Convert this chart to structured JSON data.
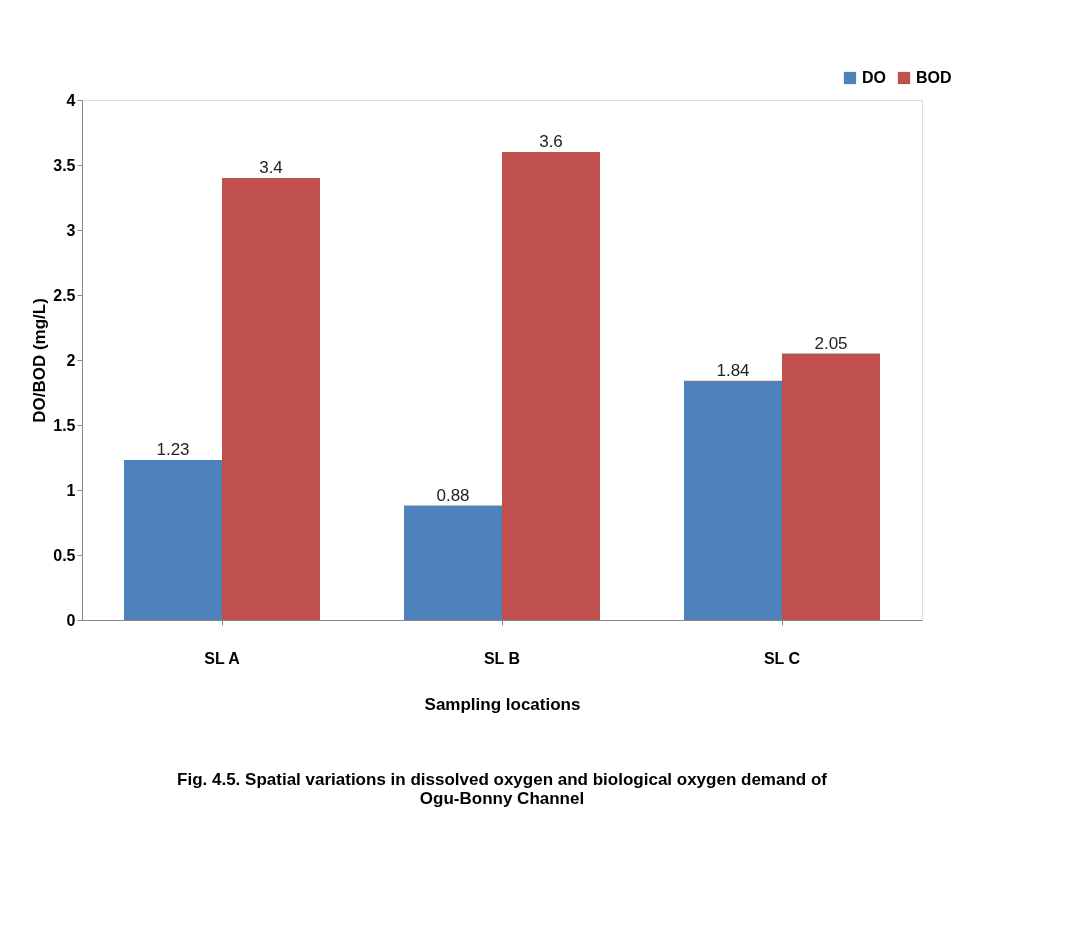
{
  "chart_data": {
    "type": "bar",
    "categories": [
      "SL A",
      "SL B",
      "SL C"
    ],
    "series": [
      {
        "name": "DO",
        "color": "#4f81bd",
        "values": [
          1.23,
          0.88,
          1.84
        ]
      },
      {
        "name": "BOD",
        "color": "#c0504d",
        "values": [
          3.4,
          3.6,
          2.05
        ]
      }
    ],
    "xlabel": "Sampling locations",
    "ylabel": "DO/BOD (mg/L)",
    "ylim": [
      0,
      4
    ],
    "yticks": [
      0,
      0.5,
      1,
      1.5,
      2,
      2.5,
      3,
      3.5,
      4
    ],
    "data_labels": true,
    "legend": "top right",
    "grid": false,
    "annotations": [
      "Fig. 4.5. Spatial variations in dissolved oxygen and biological oxygen demand of Ogu-Bonny Channel"
    ]
  }
}
